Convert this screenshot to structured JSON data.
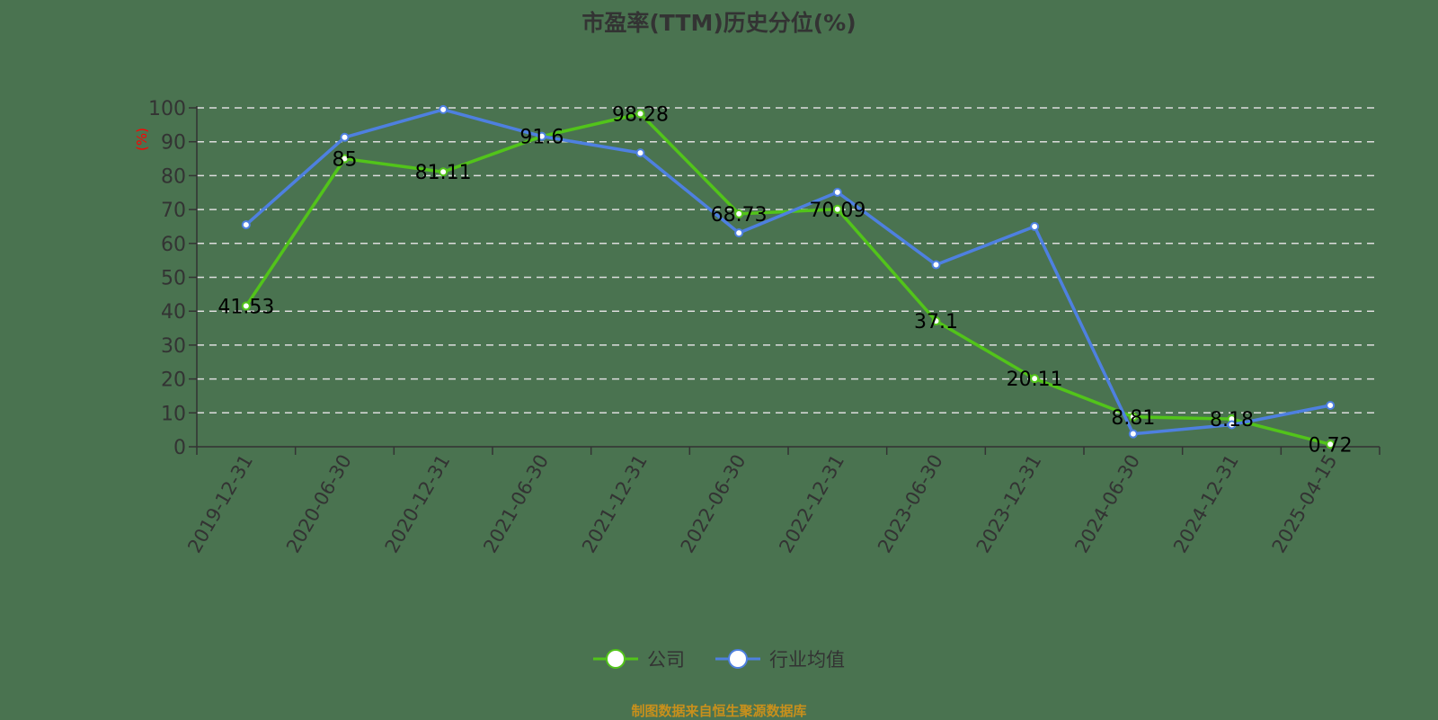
{
  "title": "市盈率(TTM)历史分位(%)",
  "source": "制图数据来自恒生聚源数据库",
  "legend": [
    {
      "label": "公司",
      "color": "#52c41a"
    },
    {
      "label": "行业均值",
      "color": "#4e80e0"
    }
  ],
  "colors": {
    "background": "#4a7350",
    "company": "#52c41a",
    "industry": "#4e80e0",
    "axis": "#333333",
    "unit": "#ff0000",
    "source": "#c8901c"
  },
  "chart_data": {
    "type": "line",
    "title": "市盈率(TTM)历史分位(%)",
    "xlabel": "",
    "ylabel": "(%)",
    "ylim": [
      0,
      100
    ],
    "yticks": [
      0,
      10,
      20,
      30,
      40,
      50,
      60,
      70,
      80,
      90,
      100
    ],
    "grid": true,
    "legend_position": "bottom",
    "categories": [
      "2019-12-31",
      "2020-06-30",
      "2020-12-31",
      "2021-06-30",
      "2021-12-31",
      "2022-06-30",
      "2022-12-31",
      "2023-06-30",
      "2023-12-31",
      "2024-06-30",
      "2024-12-31",
      "2025-04-15"
    ],
    "series": [
      {
        "name": "公司",
        "values": [
          41.53,
          85,
          81.11,
          91.6,
          98.28,
          68.73,
          70.09,
          37.1,
          20.11,
          8.81,
          8.18,
          0.72
        ],
        "labels": true
      },
      {
        "name": "行业均值",
        "values": [
          65.5,
          91.3,
          99.5,
          91.6,
          86.7,
          63.1,
          75.1,
          53.7,
          65.0,
          3.8,
          6.5,
          12.2
        ],
        "labels": false
      }
    ]
  }
}
